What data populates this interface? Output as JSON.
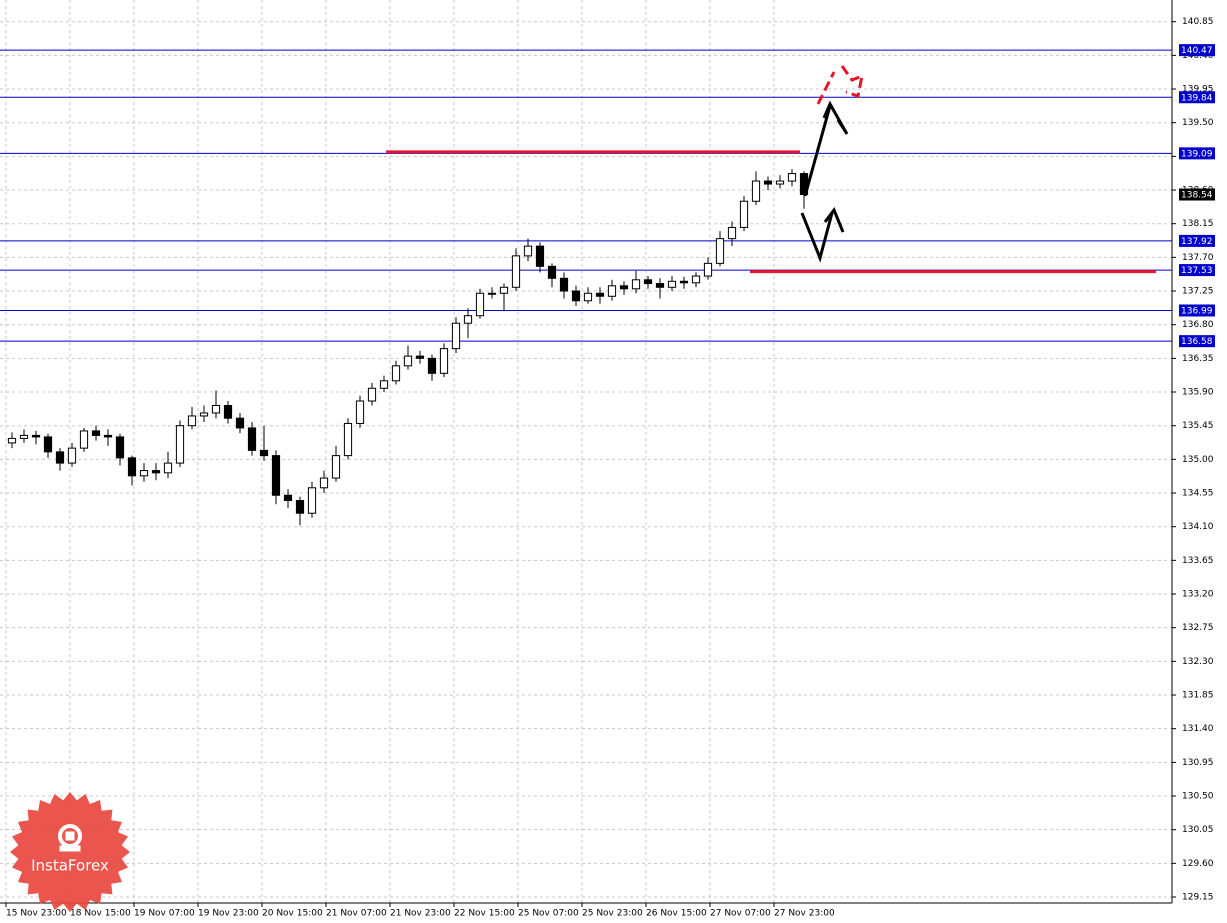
{
  "chart_data": {
    "type": "candlestick",
    "x": [
      0,
      3,
      6,
      9,
      12,
      15,
      18,
      21,
      24,
      27,
      30,
      33,
      36,
      39,
      42,
      45,
      48,
      51,
      54,
      57,
      60,
      63,
      66,
      69,
      72,
      75,
      78,
      81,
      84,
      87,
      90,
      93,
      96,
      99,
      102,
      105,
      108,
      111,
      114,
      117,
      120,
      123,
      126,
      129,
      132,
      135,
      138,
      141,
      144,
      147,
      150,
      153,
      156,
      159,
      162,
      165,
      168,
      171,
      174,
      177,
      180,
      183,
      186,
      189,
      192,
      195,
      198
    ],
    "open": [
      135.22,
      135.28,
      135.32,
      135.3,
      135.1,
      134.95,
      135.15,
      135.38,
      135.32,
      135.3,
      135.02,
      134.78,
      134.85,
      134.82,
      134.95,
      135.45,
      135.58,
      135.62,
      135.72,
      135.55,
      135.42,
      135.12,
      135.05,
      134.52,
      134.45,
      134.28,
      134.62,
      134.75,
      135.05,
      135.48,
      135.78,
      135.95,
      136.05,
      136.25,
      136.38,
      136.35,
      136.15,
      136.48,
      136.82,
      136.92,
      137.22,
      137.22,
      137.3,
      137.72,
      137.85,
      137.58,
      137.42,
      137.25,
      137.12,
      137.22,
      137.18,
      137.32,
      137.28,
      137.4,
      137.35,
      137.3,
      137.38,
      137.36,
      137.45,
      137.62,
      137.95,
      138.1,
      138.45,
      138.72,
      138.68,
      138.72,
      138.82
    ],
    "high": [
      135.36,
      135.4,
      135.38,
      135.34,
      135.15,
      135.22,
      135.42,
      135.45,
      135.4,
      135.34,
      135.05,
      134.95,
      134.95,
      135.1,
      135.52,
      135.7,
      135.72,
      135.92,
      135.78,
      135.62,
      135.5,
      135.45,
      135.12,
      134.6,
      134.5,
      134.7,
      134.85,
      135.18,
      135.55,
      135.85,
      136.02,
      136.12,
      136.32,
      136.52,
      136.45,
      136.4,
      136.55,
      136.9,
      137.02,
      137.28,
      137.3,
      137.35,
      137.82,
      137.95,
      137.9,
      137.62,
      137.5,
      137.32,
      137.3,
      137.3,
      137.4,
      137.38,
      137.52,
      137.45,
      137.42,
      137.45,
      137.44,
      137.5,
      137.7,
      138.05,
      138.18,
      138.52,
      138.85,
      138.78,
      138.8,
      138.88,
      138.85
    ],
    "low": [
      135.15,
      135.22,
      135.2,
      135.02,
      134.85,
      134.9,
      135.1,
      135.25,
      135.18,
      134.92,
      134.65,
      134.7,
      134.72,
      134.75,
      134.9,
      135.4,
      135.5,
      135.55,
      135.48,
      135.35,
      135.05,
      134.98,
      134.4,
      134.35,
      134.12,
      134.22,
      134.55,
      134.7,
      135.0,
      135.42,
      135.72,
      135.9,
      136.0,
      136.2,
      136.28,
      136.05,
      136.1,
      136.42,
      136.62,
      136.88,
      137.15,
      136.98,
      137.25,
      137.65,
      137.5,
      137.3,
      137.15,
      137.05,
      137.08,
      137.08,
      137.12,
      137.2,
      137.22,
      137.28,
      137.15,
      137.25,
      137.28,
      137.3,
      137.4,
      137.58,
      137.85,
      138.05,
      138.4,
      138.6,
      138.62,
      138.65,
      138.35
    ],
    "close": [
      135.28,
      135.32,
      135.3,
      135.1,
      134.95,
      135.15,
      135.38,
      135.32,
      135.3,
      135.02,
      134.78,
      134.85,
      134.82,
      134.95,
      135.45,
      135.58,
      135.62,
      135.72,
      135.55,
      135.42,
      135.12,
      135.05,
      134.52,
      134.45,
      134.28,
      134.62,
      134.75,
      135.05,
      135.48,
      135.78,
      135.95,
      136.05,
      136.25,
      136.38,
      136.35,
      136.15,
      136.48,
      136.82,
      136.92,
      137.22,
      137.22,
      137.3,
      137.72,
      137.85,
      137.58,
      137.42,
      137.25,
      137.12,
      137.22,
      137.18,
      137.32,
      137.28,
      137.4,
      137.35,
      137.3,
      137.38,
      137.36,
      137.45,
      137.62,
      137.95,
      138.1,
      138.45,
      138.72,
      138.68,
      138.72,
      138.82,
      138.54
    ],
    "xlim": [
      -1.5,
      291.5
    ],
    "xticks": [
      {
        "value": 0,
        "label": "15 Nov 23:00"
      },
      {
        "value": 16,
        "label": "18 Nov 15:00"
      },
      {
        "value": 32,
        "label": "19 Nov 07:00"
      },
      {
        "value": 48,
        "label": "19 Nov 23:00"
      },
      {
        "value": 64,
        "label": "20 Nov 15:00"
      },
      {
        "value": 80,
        "label": "21 Nov 07:00"
      },
      {
        "value": 96,
        "label": "21 Nov 23:00"
      },
      {
        "value": 112,
        "label": "22 Nov 15:00"
      },
      {
        "value": 128,
        "label": "25 Nov 07:00"
      },
      {
        "value": 144,
        "label": "25 Nov 23:00"
      },
      {
        "value": 160,
        "label": "26 Nov 15:00"
      },
      {
        "value": 176,
        "label": "27 Nov 07:00"
      },
      {
        "value": 192,
        "label": "27 Nov 23:00"
      }
    ],
    "ylim": [
      129.07,
      141.14
    ],
    "yticks": [
      140.85,
      {
        "value": 140.4,
        "label": "140.40"
      },
      139.95,
      {
        "value": 139.5,
        "label": "139.50"
      },
      139.05,
      {
        "value": 138.6,
        "label": "138.60"
      },
      138.15,
      {
        "value": 137.7,
        "label": "137.70"
      },
      137.25,
      {
        "value": 136.8,
        "label": "136.80"
      },
      136.35,
      {
        "value": 135.9,
        "label": "135.90"
      },
      135.45,
      {
        "value": 135,
        "label": "135.00"
      },
      134.55,
      {
        "value": 134.1,
        "label": "134.10"
      },
      133.65,
      {
        "value": 133.2,
        "label": "133.20"
      },
      132.75,
      {
        "value": 132.3,
        "label": "132.30"
      },
      131.85,
      {
        "value": 131.4,
        "label": "131.40"
      },
      130.95,
      {
        "value": 130.5,
        "label": "130.50"
      },
      130.05,
      {
        "value": 129.6,
        "label": "129.60"
      },
      129.15
    ],
    "grid": true,
    "up_color": "#ffffff",
    "down_color": "#000000",
    "levels": [
      140.47,
      139.84,
      139.09,
      137.92,
      137.53,
      136.99,
      136.58
    ],
    "level_color": "#0000cc",
    "current_price": 138.54,
    "target_lines": [
      {
        "value": 139.11,
        "x": [
          95,
          198.5
        ]
      },
      {
        "value": 137.51,
        "x": [
          186,
          287.5
        ]
      }
    ],
    "target_color": "#e8142c",
    "logo_text": "InstaForex"
  }
}
